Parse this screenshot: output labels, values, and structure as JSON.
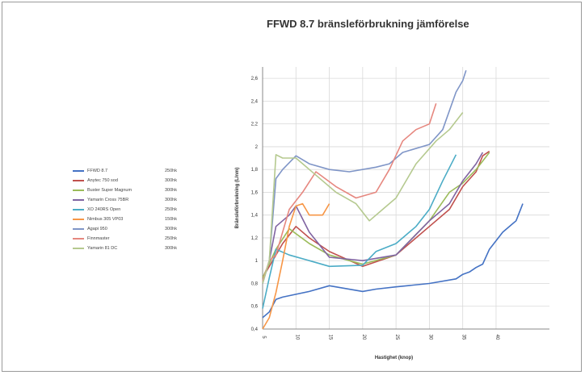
{
  "chart_data": {
    "type": "line",
    "title": "FFWD 8.7 bränsleförbrukning jämförelse",
    "xlabel": "Hastighet (knop)",
    "ylabel": "Bränsleförbrukning (L/nm)",
    "x_ticks": [
      "5",
      "10",
      "15",
      "20",
      "25",
      "30",
      "35",
      "40"
    ],
    "xlim": [
      5,
      48
    ],
    "y_ticks": [
      "0,4",
      "0,6",
      "0,8",
      "1",
      "1,2",
      "1,4",
      "1,6",
      "1,8",
      "2",
      "2,2",
      "2,4",
      "2,6"
    ],
    "ylim": [
      0.4,
      2.7
    ],
    "grid": true,
    "legend_position": "left",
    "series": [
      {
        "name": "FFWD 8.7",
        "power": "250hk",
        "color": "#4472c4",
        "points": [
          [
            5,
            0.5
          ],
          [
            6,
            0.55
          ],
          [
            7,
            0.66
          ],
          [
            8,
            0.68
          ],
          [
            12,
            0.73
          ],
          [
            15,
            0.78
          ],
          [
            20,
            0.73
          ],
          [
            22,
            0.75
          ],
          [
            25,
            0.77
          ],
          [
            30,
            0.8
          ],
          [
            34,
            0.84
          ],
          [
            35,
            0.88
          ],
          [
            36,
            0.9
          ],
          [
            37,
            0.94
          ],
          [
            38,
            0.97
          ],
          [
            39,
            1.1
          ],
          [
            41,
            1.25
          ],
          [
            43,
            1.35
          ],
          [
            44,
            1.5
          ]
        ]
      },
      {
        "name": "Anytec 750 sod",
        "power": "300hk",
        "color": "#c0504d",
        "points": [
          [
            5,
            0.85
          ],
          [
            6,
            0.95
          ],
          [
            8,
            1.15
          ],
          [
            10,
            1.3
          ],
          [
            12,
            1.2
          ],
          [
            15,
            1.08
          ],
          [
            20,
            0.95
          ],
          [
            25,
            1.05
          ],
          [
            30,
            1.3
          ],
          [
            33,
            1.45
          ],
          [
            35,
            1.65
          ],
          [
            37,
            1.78
          ],
          [
            38,
            1.92
          ],
          [
            39,
            1.96
          ]
        ]
      },
      {
        "name": "Buster Super Magnum",
        "power": "300hk",
        "color": "#9bbb59",
        "points": [
          [
            5,
            0.85
          ],
          [
            7,
            1.1
          ],
          [
            9,
            1.28
          ],
          [
            12,
            1.15
          ],
          [
            15,
            1.05
          ],
          [
            18,
            1.0
          ],
          [
            20,
            0.97
          ],
          [
            25,
            1.05
          ],
          [
            30,
            1.35
          ],
          [
            33,
            1.6
          ],
          [
            35,
            1.68
          ],
          [
            37,
            1.8
          ],
          [
            39,
            1.95
          ]
        ]
      },
      {
        "name": "Yamarin Cross 75BR",
        "power": "300hk",
        "color": "#8064a2",
        "points": [
          [
            5,
            0.8
          ],
          [
            6,
            1.0
          ],
          [
            7,
            1.3
          ],
          [
            9,
            1.4
          ],
          [
            10,
            1.48
          ],
          [
            12,
            1.25
          ],
          [
            15,
            1.03
          ],
          [
            20,
            1.0
          ],
          [
            25,
            1.05
          ],
          [
            30,
            1.35
          ],
          [
            33,
            1.5
          ],
          [
            35,
            1.7
          ],
          [
            37,
            1.85
          ],
          [
            38,
            1.95
          ]
        ]
      },
      {
        "name": "XO 240RS Open",
        "power": "250hk",
        "color": "#4bacc6",
        "points": [
          [
            5,
            0.58
          ],
          [
            6,
            0.85
          ],
          [
            7,
            1.1
          ],
          [
            9,
            1.05
          ],
          [
            12,
            1.0
          ],
          [
            15,
            0.95
          ],
          [
            20,
            0.96
          ],
          [
            22,
            1.08
          ],
          [
            25,
            1.15
          ],
          [
            28,
            1.3
          ],
          [
            30,
            1.45
          ],
          [
            32,
            1.7
          ],
          [
            34,
            1.93
          ]
        ]
      },
      {
        "name": "Nimbus 305 VP03",
        "power": "150hk",
        "color": "#f79646",
        "points": [
          [
            5,
            0.4
          ],
          [
            6,
            0.5
          ],
          [
            7,
            0.72
          ],
          [
            8,
            1.0
          ],
          [
            9,
            1.3
          ],
          [
            10,
            1.48
          ],
          [
            11,
            1.5
          ],
          [
            12,
            1.4
          ],
          [
            13,
            1.4
          ],
          [
            14,
            1.4
          ],
          [
            15,
            1.5
          ]
        ]
      },
      {
        "name": "Agapi 950",
        "power": "300hk",
        "color": "#7f95c7",
        "points": [
          [
            5,
            0.8
          ],
          [
            6,
            1.0
          ],
          [
            7,
            1.72
          ],
          [
            8,
            1.8
          ],
          [
            10,
            1.92
          ],
          [
            12,
            1.85
          ],
          [
            15,
            1.8
          ],
          [
            18,
            1.78
          ],
          [
            22,
            1.82
          ],
          [
            24,
            1.85
          ],
          [
            26,
            1.95
          ],
          [
            30,
            2.02
          ],
          [
            32,
            2.15
          ],
          [
            34,
            2.48
          ],
          [
            35,
            2.58
          ],
          [
            35.5,
            2.67
          ]
        ]
      },
      {
        "name": "Finnmaster",
        "power": "250hk",
        "color": "#e6877f",
        "points": [
          [
            5,
            0.82
          ],
          [
            6,
            1.0
          ],
          [
            7,
            1.05
          ],
          [
            9,
            1.45
          ],
          [
            11,
            1.6
          ],
          [
            13,
            1.78
          ],
          [
            16,
            1.65
          ],
          [
            19,
            1.55
          ],
          [
            22,
            1.6
          ],
          [
            24,
            1.8
          ],
          [
            26,
            2.05
          ],
          [
            28,
            2.15
          ],
          [
            30,
            2.2
          ],
          [
            31,
            2.38
          ]
        ]
      },
      {
        "name": "Yamarin 81 DC",
        "power": "300hk",
        "color": "#b5c98f",
        "points": [
          [
            5,
            0.8
          ],
          [
            6,
            1.0
          ],
          [
            7,
            1.93
          ],
          [
            8,
            1.9
          ],
          [
            10,
            1.9
          ],
          [
            13,
            1.75
          ],
          [
            16,
            1.6
          ],
          [
            19,
            1.5
          ],
          [
            21,
            1.35
          ],
          [
            23,
            1.45
          ],
          [
            25,
            1.55
          ],
          [
            28,
            1.85
          ],
          [
            31,
            2.05
          ],
          [
            33,
            2.15
          ],
          [
            35,
            2.3
          ]
        ]
      }
    ]
  }
}
